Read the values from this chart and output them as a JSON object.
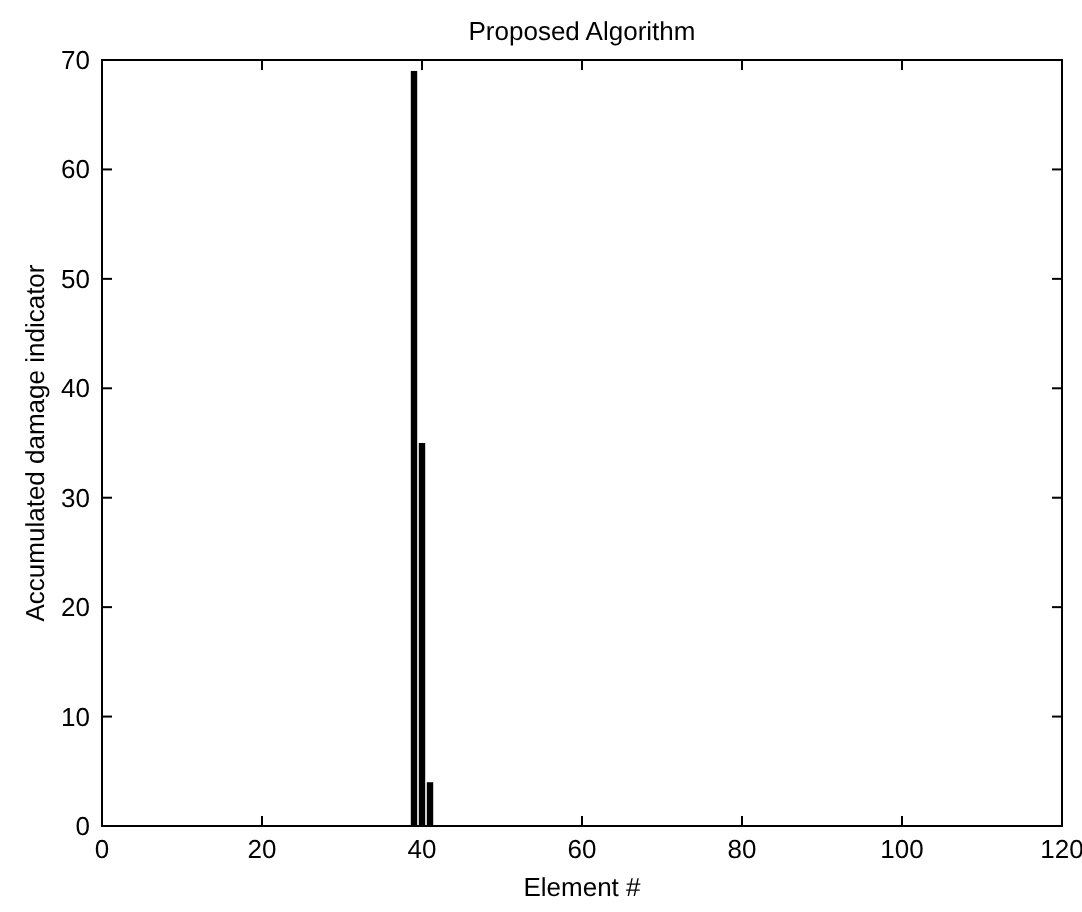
{
  "chart_data": {
    "type": "bar",
    "title": "Proposed Algorithm",
    "xlabel": "Element #",
    "ylabel": "Accumulated damage indicator",
    "x": [
      39,
      40,
      41
    ],
    "values": [
      69,
      35,
      4
    ],
    "color": "#000000",
    "xlim": [
      0,
      120
    ],
    "xticks": [
      0,
      20,
      40,
      60,
      80,
      100,
      120
    ],
    "ylim": [
      0,
      70
    ],
    "yticks": [
      0,
      10,
      20,
      30,
      40,
      50,
      60,
      70
    ],
    "grid": false
  }
}
